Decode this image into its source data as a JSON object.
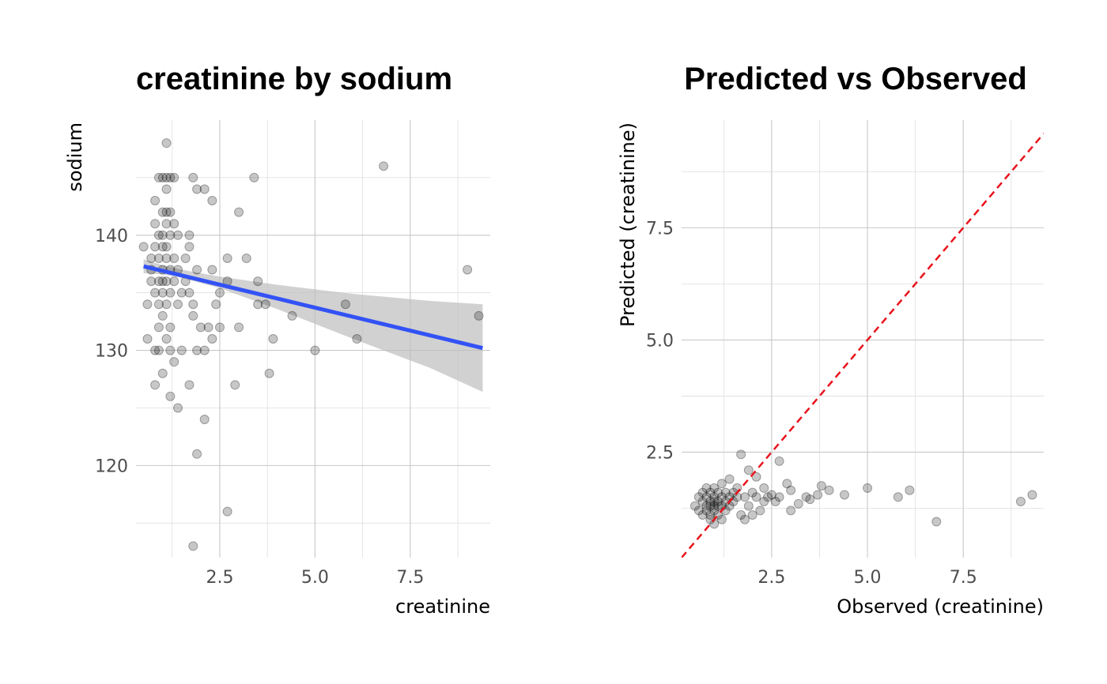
{
  "chart_data": [
    {
      "type": "scatter",
      "title": "creatinine by sodium",
      "xlabel": "creatinine",
      "ylabel": "sodium",
      "xlim": [
        0.3,
        9.6
      ],
      "ylim": [
        112,
        150
      ],
      "x_ticks": [
        2.5,
        5.0,
        7.5
      ],
      "x_tick_labels": [
        "2.5",
        "5.0",
        "7.5"
      ],
      "y_ticks": [
        120,
        130,
        140
      ],
      "y_tick_labels": [
        "120",
        "130",
        "140"
      ],
      "grid": true,
      "point_color": "#000000",
      "fit_color": "#3352f5",
      "band_color": "#bdbdbd",
      "fit_line": {
        "x": [
          0.5,
          9.4
        ],
        "y": [
          137.3,
          130.2
        ]
      },
      "confidence_band": {
        "x": [
          0.5,
          1.0,
          1.5,
          2.5,
          4.0,
          6.0,
          8.0,
          9.4
        ],
        "upper": [
          137.9,
          137.4,
          137.0,
          136.4,
          135.7,
          134.9,
          134.3,
          134.0
        ],
        "lower": [
          136.7,
          136.6,
          136.3,
          135.4,
          133.6,
          131.0,
          128.5,
          126.4
        ]
      },
      "points": [
        [
          0.5,
          139
        ],
        [
          0.6,
          131
        ],
        [
          0.6,
          134
        ],
        [
          0.7,
          136
        ],
        [
          0.7,
          138
        ],
        [
          0.7,
          137
        ],
        [
          0.8,
          135
        ],
        [
          0.8,
          130
        ],
        [
          0.8,
          127
        ],
        [
          0.8,
          141
        ],
        [
          0.8,
          143
        ],
        [
          0.8,
          139
        ],
        [
          0.9,
          145
        ],
        [
          0.9,
          140
        ],
        [
          0.9,
          138
        ],
        [
          0.9,
          136
        ],
        [
          0.9,
          134
        ],
        [
          0.9,
          132
        ],
        [
          0.9,
          130
        ],
        [
          1.0,
          145
        ],
        [
          1.0,
          142
        ],
        [
          1.0,
          140
        ],
        [
          1.0,
          139
        ],
        [
          1.0,
          137
        ],
        [
          1.0,
          136
        ],
        [
          1.0,
          135
        ],
        [
          1.0,
          133
        ],
        [
          1.0,
          128
        ],
        [
          1.1,
          148
        ],
        [
          1.1,
          145
        ],
        [
          1.1,
          144
        ],
        [
          1.1,
          142
        ],
        [
          1.1,
          141
        ],
        [
          1.1,
          139
        ],
        [
          1.1,
          138
        ],
        [
          1.1,
          136
        ],
        [
          1.1,
          134
        ],
        [
          1.1,
          131
        ],
        [
          1.2,
          145
        ],
        [
          1.2,
          142
        ],
        [
          1.2,
          140
        ],
        [
          1.2,
          137
        ],
        [
          1.2,
          135
        ],
        [
          1.2,
          132
        ],
        [
          1.2,
          130
        ],
        [
          1.2,
          126
        ],
        [
          1.3,
          145
        ],
        [
          1.3,
          141
        ],
        [
          1.3,
          138
        ],
        [
          1.3,
          136
        ],
        [
          1.3,
          129
        ],
        [
          1.4,
          140
        ],
        [
          1.4,
          137
        ],
        [
          1.4,
          134
        ],
        [
          1.4,
          125
        ],
        [
          1.5,
          135
        ],
        [
          1.5,
          130
        ],
        [
          1.6,
          138
        ],
        [
          1.6,
          136
        ],
        [
          1.7,
          140
        ],
        [
          1.7,
          139
        ],
        [
          1.7,
          135
        ],
        [
          1.7,
          127
        ],
        [
          1.8,
          145
        ],
        [
          1.8,
          134
        ],
        [
          1.8,
          133
        ],
        [
          1.8,
          113
        ],
        [
          1.9,
          144
        ],
        [
          1.9,
          137
        ],
        [
          1.9,
          130
        ],
        [
          1.9,
          121
        ],
        [
          2.0,
          132
        ],
        [
          2.1,
          144
        ],
        [
          2.1,
          130
        ],
        [
          2.1,
          124
        ],
        [
          2.2,
          132
        ],
        [
          2.3,
          143
        ],
        [
          2.3,
          137
        ],
        [
          2.3,
          131
        ],
        [
          2.4,
          134
        ],
        [
          2.5,
          135
        ],
        [
          2.5,
          132
        ],
        [
          2.7,
          138
        ],
        [
          2.7,
          136
        ],
        [
          2.7,
          116
        ],
        [
          2.9,
          127
        ],
        [
          3.0,
          142
        ],
        [
          3.0,
          132
        ],
        [
          3.2,
          138
        ],
        [
          3.4,
          145
        ],
        [
          3.5,
          136
        ],
        [
          3.5,
          134
        ],
        [
          3.7,
          134
        ],
        [
          3.8,
          128
        ],
        [
          3.9,
          131
        ],
        [
          4.4,
          133
        ],
        [
          5.0,
          130
        ],
        [
          5.8,
          134
        ],
        [
          6.1,
          131
        ],
        [
          6.8,
          146
        ],
        [
          9.0,
          137
        ],
        [
          9.3,
          133
        ]
      ]
    },
    {
      "type": "scatter",
      "title": "Predicted vs Observed",
      "xlabel": "Observed (creatinine)",
      "ylabel": "Predicted (creatinine)",
      "xlim": [
        0.15,
        9.6
      ],
      "ylim": [
        0.15,
        9.9
      ],
      "x_ticks": [
        2.5,
        5.0,
        7.5
      ],
      "x_tick_labels": [
        "2.5",
        "5.0",
        "7.5"
      ],
      "y_ticks": [
        2.5,
        5.0,
        7.5
      ],
      "y_tick_labels": [
        "2.5",
        "5.0",
        "7.5"
      ],
      "grid": true,
      "point_color": "#000000",
      "reference_line": {
        "slope": 1,
        "intercept": 0,
        "color": "#e8141c",
        "style": "dashed"
      },
      "points": [
        [
          0.5,
          1.3
        ],
        [
          0.6,
          1.5
        ],
        [
          0.6,
          1.2
        ],
        [
          0.7,
          1.4
        ],
        [
          0.7,
          1.6
        ],
        [
          0.7,
          1.1
        ],
        [
          0.8,
          1.3
        ],
        [
          0.8,
          1.5
        ],
        [
          0.8,
          1.7
        ],
        [
          0.8,
          1.2
        ],
        [
          0.9,
          1.4
        ],
        [
          0.9,
          1.3
        ],
        [
          0.9,
          1.6
        ],
        [
          0.9,
          1.1
        ],
        [
          0.9,
          1.0
        ],
        [
          1.0,
          1.4
        ],
        [
          1.0,
          1.3
        ],
        [
          1.0,
          1.5
        ],
        [
          1.0,
          1.2
        ],
        [
          1.0,
          0.9
        ],
        [
          1.0,
          1.7
        ],
        [
          1.1,
          1.4
        ],
        [
          1.1,
          1.3
        ],
        [
          1.1,
          1.6
        ],
        [
          1.1,
          1.1
        ],
        [
          1.2,
          1.5
        ],
        [
          1.2,
          1.3
        ],
        [
          1.2,
          1.8
        ],
        [
          1.2,
          1.0
        ],
        [
          1.3,
          1.4
        ],
        [
          1.3,
          1.6
        ],
        [
          1.3,
          1.2
        ],
        [
          1.4,
          1.5
        ],
        [
          1.4,
          1.3
        ],
        [
          1.4,
          1.9
        ],
        [
          1.5,
          1.4
        ],
        [
          1.5,
          1.6
        ],
        [
          1.6,
          1.5
        ],
        [
          1.6,
          1.7
        ],
        [
          1.7,
          2.45
        ],
        [
          1.7,
          1.1
        ],
        [
          1.8,
          1.0
        ],
        [
          1.8,
          1.5
        ],
        [
          1.9,
          2.1
        ],
        [
          1.9,
          1.3
        ],
        [
          2.0,
          1.1
        ],
        [
          2.0,
          1.6
        ],
        [
          2.1,
          1.95
        ],
        [
          2.1,
          1.5
        ],
        [
          2.2,
          1.2
        ],
        [
          2.3,
          1.4
        ],
        [
          2.3,
          1.7
        ],
        [
          2.4,
          1.5
        ],
        [
          2.5,
          1.55
        ],
        [
          2.6,
          1.4
        ],
        [
          2.7,
          2.3
        ],
        [
          2.7,
          1.5
        ],
        [
          2.9,
          1.8
        ],
        [
          3.0,
          1.2
        ],
        [
          3.0,
          1.65
        ],
        [
          3.2,
          1.35
        ],
        [
          3.4,
          1.5
        ],
        [
          3.5,
          1.45
        ],
        [
          3.7,
          1.55
        ],
        [
          3.8,
          1.75
        ],
        [
          4.0,
          1.65
        ],
        [
          4.4,
          1.55
        ],
        [
          5.0,
          1.7
        ],
        [
          5.8,
          1.5
        ],
        [
          6.1,
          1.65
        ],
        [
          6.8,
          0.95
        ],
        [
          9.0,
          1.4
        ],
        [
          9.3,
          1.55
        ]
      ]
    }
  ]
}
